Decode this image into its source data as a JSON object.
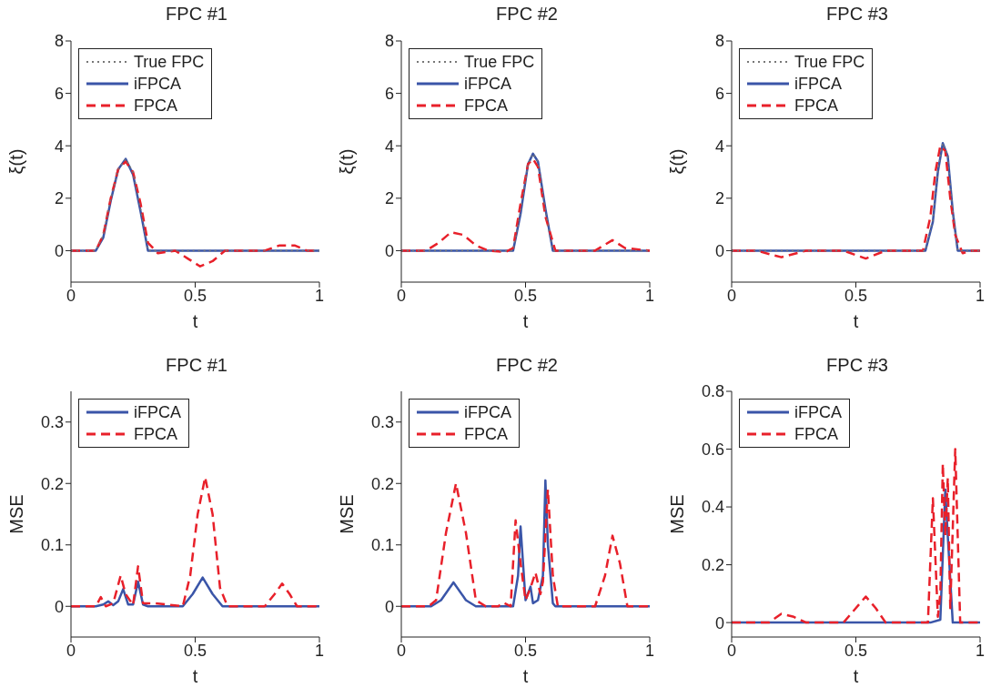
{
  "chart_data": [
    {
      "type": "line",
      "title": "FPC #1",
      "xlabel": "t",
      "ylabel": "ξ(t)",
      "xlim": [
        0,
        1
      ],
      "xticks": [
        0,
        0.5,
        1
      ],
      "ylim": [
        -1.2,
        8
      ],
      "yticks": [
        0,
        2,
        4,
        6,
        8
      ],
      "legend": "top left",
      "grid": false,
      "series": [
        {
          "name": "True FPC",
          "color": "#777777",
          "line_style": "dotted",
          "x": [
            0,
            0.1,
            0.13,
            0.16,
            0.19,
            0.22,
            0.25,
            0.28,
            0.31,
            1
          ],
          "values": [
            0,
            0,
            0.6,
            2,
            3.1,
            3.5,
            3,
            1.6,
            0,
            0
          ]
        },
        {
          "name": "iFPCA",
          "color": "#3a55a8",
          "line_style": "solid",
          "x": [
            0,
            0.1,
            0.13,
            0.16,
            0.19,
            0.22,
            0.25,
            0.28,
            0.31,
            1
          ],
          "values": [
            0,
            0,
            0.5,
            1.9,
            3.1,
            3.5,
            2.9,
            1.5,
            0,
            0
          ]
        },
        {
          "name": "FPCA",
          "color": "#e8202a",
          "line_style": "dashed",
          "x": [
            0,
            0.1,
            0.13,
            0.16,
            0.19,
            0.22,
            0.25,
            0.28,
            0.31,
            0.35,
            0.42,
            0.47,
            0.52,
            0.57,
            0.62,
            0.7,
            0.78,
            0.84,
            0.9,
            0.95,
            1
          ],
          "values": [
            0,
            0,
            0.6,
            2,
            3.1,
            3.4,
            3,
            1.8,
            0.3,
            -0.1,
            0,
            -0.3,
            -0.6,
            -0.4,
            0,
            0,
            0,
            0.2,
            0.2,
            0,
            0
          ]
        }
      ]
    },
    {
      "type": "line",
      "title": "FPC #2",
      "xlabel": "t",
      "ylabel": "ξ(t)",
      "xlim": [
        0,
        1
      ],
      "xticks": [
        0,
        0.5,
        1
      ],
      "ylim": [
        -1.2,
        8
      ],
      "yticks": [
        0,
        2,
        4,
        6,
        8
      ],
      "legend": "top left",
      "grid": false,
      "series": [
        {
          "name": "True FPC",
          "color": "#777777",
          "line_style": "dotted",
          "x": [
            0,
            0.45,
            0.48,
            0.51,
            0.53,
            0.55,
            0.58,
            0.61,
            1
          ],
          "values": [
            0,
            0,
            1.5,
            3.3,
            3.7,
            3.4,
            1.5,
            0,
            0
          ]
        },
        {
          "name": "iFPCA",
          "color": "#3a55a8",
          "line_style": "solid",
          "x": [
            0,
            0.45,
            0.48,
            0.51,
            0.53,
            0.55,
            0.58,
            0.61,
            1
          ],
          "values": [
            0,
            0,
            1.4,
            3.3,
            3.7,
            3.4,
            1.6,
            0,
            0
          ]
        },
        {
          "name": "FPCA",
          "color": "#e8202a",
          "line_style": "dashed",
          "x": [
            0,
            0.1,
            0.15,
            0.2,
            0.25,
            0.3,
            0.35,
            0.42,
            0.45,
            0.48,
            0.51,
            0.53,
            0.55,
            0.58,
            0.62,
            0.7,
            0.78,
            0.85,
            0.9,
            1
          ],
          "values": [
            0,
            0,
            0.3,
            0.7,
            0.6,
            0.2,
            0,
            -0.05,
            0.1,
            1.8,
            3.3,
            3.5,
            3.2,
            1.3,
            0,
            0,
            0,
            0.4,
            0.1,
            0
          ]
        }
      ]
    },
    {
      "type": "line",
      "title": "FPC #3",
      "xlabel": "t",
      "ylabel": "ξ(t)",
      "xlim": [
        0,
        1
      ],
      "xticks": [
        0,
        0.5,
        1
      ],
      "ylim": [
        -1.2,
        8
      ],
      "yticks": [
        0,
        2,
        4,
        6,
        8
      ],
      "legend": "top left",
      "grid": false,
      "series": [
        {
          "name": "True FPC",
          "color": "#777777",
          "line_style": "dotted",
          "x": [
            0,
            0.78,
            0.81,
            0.83,
            0.85,
            0.87,
            0.89,
            0.91,
            1
          ],
          "values": [
            0,
            0,
            1.2,
            3,
            4.1,
            3.6,
            1.5,
            0,
            0
          ]
        },
        {
          "name": "iFPCA",
          "color": "#3a55a8",
          "line_style": "solid",
          "x": [
            0,
            0.78,
            0.81,
            0.83,
            0.85,
            0.87,
            0.89,
            0.91,
            1
          ],
          "values": [
            0,
            0,
            1.1,
            3,
            4.1,
            3.6,
            1.5,
            0,
            0
          ]
        },
        {
          "name": "FPCA",
          "color": "#e8202a",
          "line_style": "dashed",
          "x": [
            0,
            0.1,
            0.2,
            0.3,
            0.4,
            0.45,
            0.54,
            0.62,
            0.7,
            0.77,
            0.8,
            0.82,
            0.84,
            0.86,
            0.88,
            0.9,
            0.93,
            0.96,
            1
          ],
          "values": [
            0,
            0,
            -0.25,
            0,
            0,
            0,
            -0.3,
            0,
            0,
            0,
            1.3,
            3,
            4,
            3.8,
            2,
            0.6,
            -0.1,
            0,
            0
          ]
        }
      ]
    },
    {
      "type": "line",
      "title": "FPC #1",
      "xlabel": "t",
      "ylabel": "MSE",
      "xlim": [
        0,
        1
      ],
      "xticks": [
        0,
        0.5,
        1
      ],
      "ylim": [
        -0.05,
        0.35
      ],
      "yticks": [
        0,
        0.1,
        0.2,
        0.3
      ],
      "legend": "top left",
      "grid": false,
      "series": [
        {
          "name": "iFPCA",
          "color": "#3a55a8",
          "line_style": "solid",
          "x": [
            0,
            0.1,
            0.13,
            0.15,
            0.17,
            0.19,
            0.21,
            0.23,
            0.25,
            0.27,
            0.29,
            0.31,
            0.4,
            0.45,
            0.49,
            0.53,
            0.57,
            0.61,
            1
          ],
          "values": [
            0,
            0,
            0.003,
            0.008,
            0.002,
            0.008,
            0.028,
            0.003,
            0.003,
            0.04,
            0.003,
            0,
            0,
            0,
            0.02,
            0.047,
            0.02,
            0,
            0
          ]
        },
        {
          "name": "FPCA",
          "color": "#e8202a",
          "line_style": "dashed",
          "x": [
            0,
            0.1,
            0.12,
            0.14,
            0.17,
            0.2,
            0.22,
            0.25,
            0.27,
            0.29,
            0.31,
            0.34,
            0.45,
            0.48,
            0.51,
            0.54,
            0.57,
            0.6,
            0.63,
            0.78,
            0.82,
            0.85,
            0.88,
            0.91,
            1
          ],
          "values": [
            0,
            0,
            0.015,
            0,
            0.005,
            0.05,
            0.02,
            0.002,
            0.065,
            0.005,
            0.005,
            0.005,
            0,
            0.05,
            0.15,
            0.21,
            0.15,
            0.03,
            0,
            0,
            0.02,
            0.037,
            0.02,
            0,
            0
          ]
        }
      ]
    },
    {
      "type": "line",
      "title": "FPC #2",
      "xlabel": "t",
      "ylabel": "MSE",
      "xlim": [
        0,
        1
      ],
      "xticks": [
        0,
        0.5,
        1
      ],
      "ylim": [
        -0.05,
        0.35
      ],
      "yticks": [
        0,
        0.1,
        0.2,
        0.3
      ],
      "legend": "top left",
      "grid": false,
      "series": [
        {
          "name": "iFPCA",
          "color": "#3a55a8",
          "line_style": "solid",
          "x": [
            0,
            0.12,
            0.16,
            0.21,
            0.26,
            0.3,
            0.45,
            0.47,
            0.48,
            0.5,
            0.52,
            0.53,
            0.55,
            0.57,
            0.58,
            0.59,
            0.61,
            0.62,
            1
          ],
          "values": [
            0,
            0,
            0.01,
            0.039,
            0.01,
            0,
            0,
            0.05,
            0.13,
            0.01,
            0.032,
            0.005,
            0.01,
            0.05,
            0.205,
            0.1,
            0.005,
            0,
            0
          ]
        },
        {
          "name": "FPCA",
          "color": "#e8202a",
          "line_style": "dashed",
          "x": [
            0,
            0.11,
            0.14,
            0.18,
            0.22,
            0.26,
            0.3,
            0.34,
            0.39,
            0.41,
            0.44,
            0.46,
            0.48,
            0.5,
            0.52,
            0.54,
            0.56,
            0.57,
            0.59,
            0.61,
            0.63,
            0.66,
            0.78,
            0.82,
            0.85,
            0.88,
            0.91,
            1
          ],
          "values": [
            0,
            0,
            0.01,
            0.12,
            0.2,
            0.12,
            0.01,
            0,
            0,
            0.006,
            0,
            0.14,
            0.07,
            0.01,
            0.03,
            0.055,
            0.02,
            0.04,
            0.19,
            0.05,
            0,
            0,
            0,
            0.05,
            0.115,
            0.07,
            0,
            0
          ]
        }
      ]
    },
    {
      "type": "line",
      "title": "FPC #3",
      "xlabel": "t",
      "ylabel": "MSE",
      "xlim": [
        0,
        1
      ],
      "xticks": [
        0,
        0.5,
        1
      ],
      "ylim": [
        -0.05,
        0.8
      ],
      "yticks": [
        0,
        0.2,
        0.4,
        0.6,
        0.8
      ],
      "legend": "top left",
      "grid": false,
      "series": [
        {
          "name": "iFPCA",
          "color": "#3a55a8",
          "line_style": "solid",
          "x": [
            0,
            0.8,
            0.84,
            0.86,
            0.87,
            0.89,
            1
          ],
          "values": [
            0,
            0,
            0.01,
            0.46,
            0.3,
            0,
            0
          ]
        },
        {
          "name": "FPCA",
          "color": "#e8202a",
          "line_style": "dashed",
          "x": [
            0,
            0.15,
            0.2,
            0.25,
            0.3,
            0.45,
            0.5,
            0.54,
            0.58,
            0.62,
            0.77,
            0.79,
            0.81,
            0.83,
            0.84,
            0.85,
            0.86,
            0.87,
            0.88,
            0.9,
            0.91,
            0.92,
            0.94,
            1
          ],
          "values": [
            0,
            0,
            0.03,
            0.02,
            0,
            0,
            0.05,
            0.09,
            0.05,
            0,
            0,
            0,
            0.43,
            0.02,
            0.1,
            0.55,
            0.3,
            0.5,
            0.05,
            0.6,
            0.3,
            0,
            0,
            0
          ]
        }
      ]
    }
  ]
}
